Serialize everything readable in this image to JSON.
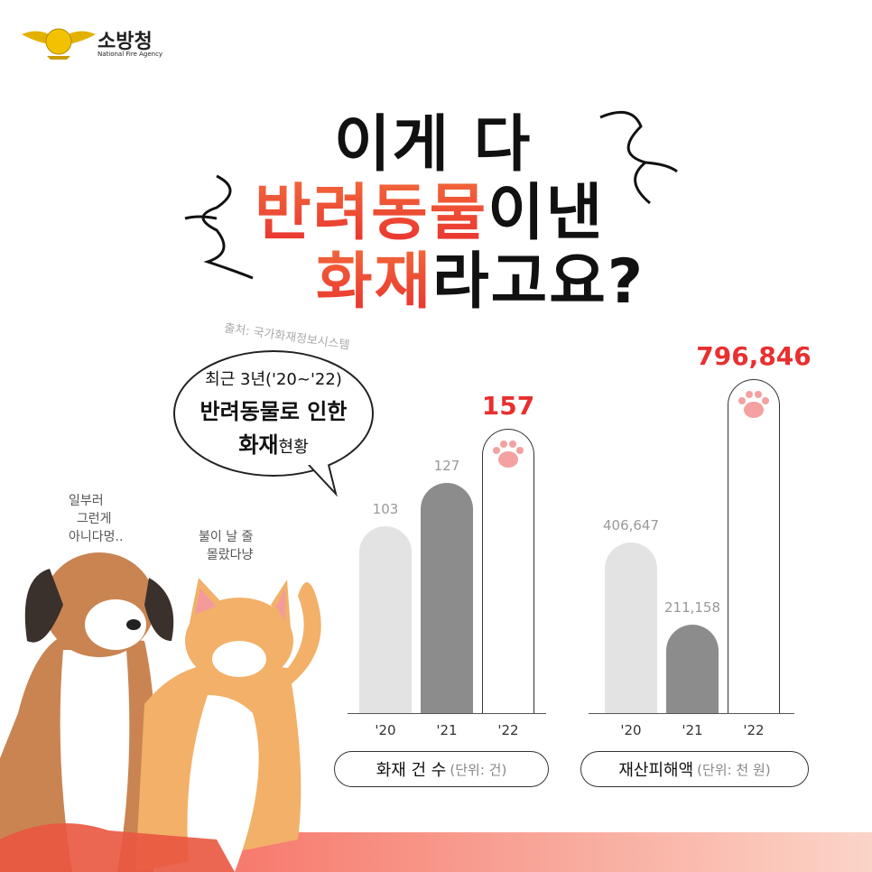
{
  "logo": {
    "name": "소방청",
    "sub": "National Fire Agency"
  },
  "headline": {
    "line1": "이게 다",
    "line2_red": "반려동물",
    "line2_black": "이낸",
    "line3_red": "화재",
    "line3_black": "라고요?"
  },
  "source": "출처: 국가화재정보시스템",
  "bubble": {
    "line1": "최근 3년('20~'22)",
    "line2": "반려동물로 인한",
    "line3_bold": "화재",
    "line3_rest": "현황"
  },
  "dog_says": "일부러\n  그런게\n아니다멍..",
  "cat_says": "불이 날 줄\n  몰랐다냥",
  "colors": {
    "accent": "#e8302f",
    "bar_light": "#e3e3e3",
    "bar_dark": "#8c8c8c",
    "paw": "#f3a1a1"
  },
  "chart_data": [
    {
      "type": "bar",
      "categories": [
        "'20",
        "'21",
        "'22"
      ],
      "values": [
        103,
        127,
        157
      ],
      "value_labels": [
        "103",
        "127",
        "157"
      ],
      "label": "화재 건 수",
      "unit": "(단위: 건)",
      "highlight": "'22"
    },
    {
      "type": "bar",
      "categories": [
        "'20",
        "'21",
        "'22"
      ],
      "values": [
        406647,
        211158,
        796846
      ],
      "value_labels": [
        "406,647",
        "211,158",
        "796,846"
      ],
      "label": "재산피해액",
      "unit": "(단위: 천 원)",
      "highlight": "'22"
    }
  ]
}
